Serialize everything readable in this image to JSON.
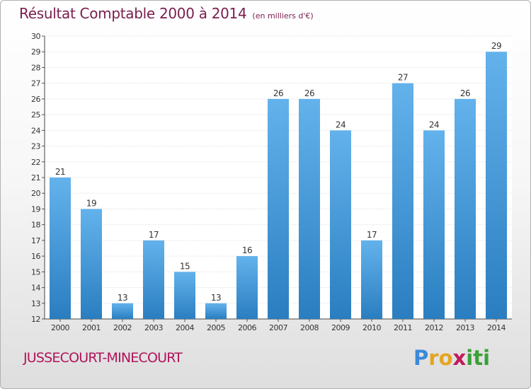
{
  "chart_data": {
    "type": "bar",
    "title": "Résultat Comptable 2000 à 2014",
    "subtitle": "(en milliers d'€)",
    "categories": [
      "2000",
      "2001",
      "2002",
      "2003",
      "2004",
      "2005",
      "2006",
      "2007",
      "2008",
      "2009",
      "2010",
      "2011",
      "2012",
      "2013",
      "2014"
    ],
    "values": [
      21,
      19,
      13,
      17,
      15,
      13,
      16,
      26,
      26,
      24,
      17,
      27,
      24,
      26,
      29
    ],
    "ylim": [
      12,
      30
    ],
    "yticks": [
      12,
      13,
      14,
      15,
      16,
      17,
      18,
      19,
      20,
      21,
      22,
      23,
      24,
      25,
      26,
      27,
      28,
      29,
      30
    ],
    "xlabel": "",
    "ylabel": "",
    "grid": true
  },
  "commune": "JUSSECOURT-MINECOURT",
  "logo": {
    "text": "Proxiti",
    "letters": [
      "P",
      "r",
      "o",
      "x",
      "i",
      "t",
      "i"
    ]
  },
  "colors": {
    "bar_top": "#63b2ec",
    "bar_bottom": "#2a7ec0",
    "title": "#7a1d4e",
    "commune": "#b0145a",
    "logo": [
      "#3a8ad8",
      "#e6a520",
      "#e6a520",
      "#c2185b",
      "#3aa13a",
      "#3aa13a",
      "#3aa13a"
    ]
  }
}
